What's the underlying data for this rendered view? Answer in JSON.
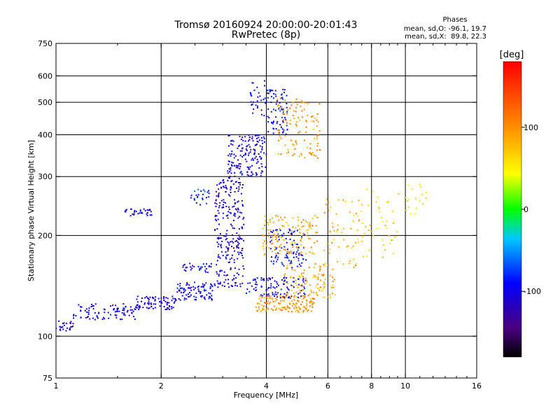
{
  "chart_data": {
    "type": "scatter",
    "title": "Tromsø 20160924 20:00:00-20:01:43",
    "subtitle": "RwPretec (8p)",
    "xlabel": "Frequency [MHz]",
    "ylabel": "Stationary phase Virtual Height [km]",
    "x_scale": "log2",
    "y_scale": "log",
    "xlim": [
      1,
      16
    ],
    "ylim": [
      75,
      750
    ],
    "x_ticks": [
      1,
      2,
      4,
      6,
      8,
      10,
      16
    ],
    "x_minor_ticks": [
      1.5,
      2.5,
      3,
      3.5,
      4.5,
      5,
      5.5,
      6.5,
      7,
      7.5,
      8.5,
      9,
      9.5,
      11,
      12,
      13,
      14,
      15
    ],
    "x_gridlines": [
      2,
      4,
      6,
      8,
      10
    ],
    "y_ticks": [
      75,
      100,
      200,
      300,
      400,
      500,
      600,
      750
    ],
    "y_gridlines": [
      100,
      200,
      300,
      400,
      500,
      600
    ],
    "grid": true,
    "phases_header": "Phases",
    "phases_stats": [
      "mean, sd,O: -96.1, 19.7",
      "mean, sd,X:  89.8, 22.3"
    ],
    "colorbar": {
      "unit": "[deg]",
      "range": [
        -180,
        180
      ],
      "ticks": [
        100,
        0,
        -100
      ],
      "colormap": "rainbow (black-purple-blue-cyan-green-yellow-orange-red)"
    },
    "series": [
      {
        "mode": "O",
        "color_hint": "blue-purple",
        "clusters": [
          {
            "f": [
              1.0,
              1.12
            ],
            "h": [
              103,
              112
            ],
            "phase": -110,
            "n": 25
          },
          {
            "f": [
              1.12,
              1.7
            ],
            "h": [
              112,
              125
            ],
            "phase": -105,
            "n": 90
          },
          {
            "f": [
              1.7,
              2.2
            ],
            "h": [
              120,
              132
            ],
            "phase": -105,
            "n": 80
          },
          {
            "f": [
              2.2,
              2.85
            ],
            "h": [
              128,
              145
            ],
            "phase": -100,
            "n": 90
          },
          {
            "f": [
              2.3,
              2.8
            ],
            "h": [
              155,
              165
            ],
            "phase": -100,
            "n": 30
          },
          {
            "f": [
              2.85,
              3.45
            ],
            "h": [
              140,
              300
            ],
            "phase": -110,
            "n": 260
          },
          {
            "f": [
              3.1,
              4.0
            ],
            "h": [
              300,
              400
            ],
            "phase": -105,
            "n": 160
          },
          {
            "f": [
              4.0,
              4.6
            ],
            "h": [
              400,
              550
            ],
            "phase": -95,
            "n": 80
          },
          {
            "f": [
              1.55,
              1.9
            ],
            "h": [
              228,
              240
            ],
            "phase": -100,
            "n": 35
          },
          {
            "f": [
              2.4,
              2.75
            ],
            "h": [
              245,
              275
            ],
            "phase": -80,
            "n": 25
          },
          {
            "f": [
              3.5,
              5.2
            ],
            "h": [
              130,
              150
            ],
            "phase": -100,
            "n": 110
          },
          {
            "f": [
              4.1,
              5.2
            ],
            "h": [
              160,
              210
            ],
            "phase": -95,
            "n": 90
          },
          {
            "f": [
              3.6,
              4.0
            ],
            "h": [
              450,
              580
            ],
            "phase": -100,
            "n": 30
          }
        ]
      },
      {
        "mode": "X",
        "color_hint": "yellow-orange",
        "clusters": [
          {
            "f": [
              3.7,
              5.5
            ],
            "h": [
              118,
              132
            ],
            "phase": 95,
            "n": 140
          },
          {
            "f": [
              4.5,
              6.3
            ],
            "h": [
              130,
              165
            ],
            "phase": 85,
            "n": 110
          },
          {
            "f": [
              3.9,
              5.6
            ],
            "h": [
              175,
              230
            ],
            "phase": 90,
            "n": 130
          },
          {
            "f": [
              4.3,
              5.7
            ],
            "h": [
              340,
              520
            ],
            "phase": 95,
            "n": 110
          },
          {
            "f": [
              5.8,
              7.4
            ],
            "h": [
              160,
              260
            ],
            "phase": 80,
            "n": 50
          },
          {
            "f": [
              7.3,
              9.6
            ],
            "h": [
              170,
              280
            ],
            "phase": 60,
            "n": 50
          },
          {
            "f": [
              10.0,
              11.5
            ],
            "h": [
              230,
              290
            ],
            "phase": 50,
            "n": 18
          }
        ]
      }
    ]
  }
}
